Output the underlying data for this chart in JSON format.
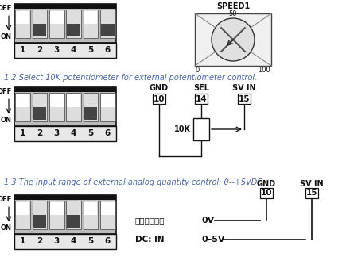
{
  "bg_color": "#ffffff",
  "text_color_blue": "#4466aa",
  "text_color_black": "#111111",
  "section12_text": "1.2 Select 10K potentiometer for external potentiometer control.",
  "section13_text": "1.3 The input range of external analog quantity control: 0--+5VDC.",
  "dip_switch_labels": [
    "1",
    "2",
    "3",
    "4",
    "5",
    "6"
  ],
  "switch1_on_off": [
    false,
    true,
    false,
    true,
    false,
    true
  ],
  "switch2_on_off": [
    false,
    true,
    false,
    false,
    true,
    false
  ],
  "switch3_on_off": [
    false,
    true,
    false,
    true,
    false,
    false
  ],
  "speed1_label": "SPEED1",
  "gnd_label": "GND",
  "sel_label": "SEL",
  "svin_label": "SV IN",
  "pin10_label": "10",
  "pin14_label": "14",
  "pin15_label": "15",
  "resistor_label": "10K",
  "analog_label": "模拟信号输入",
  "dc_in_label": "DC: IN",
  "ov_label": "0V",
  "v5_label": "0–5V"
}
